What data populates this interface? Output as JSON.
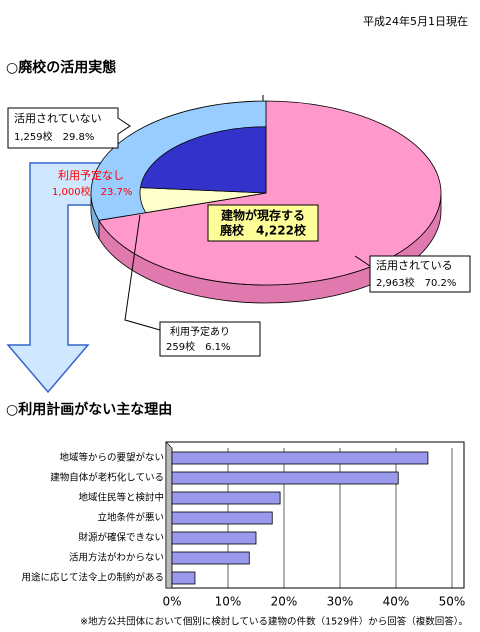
{
  "header": {
    "date": "平成24年5月1日現在"
  },
  "chart_data": [
    {
      "type": "pie",
      "title": "○廃校の活用実態",
      "center_label": [
        "建物が現存する",
        "廃校　4,222校"
      ],
      "series": [
        {
          "name": "活用されている",
          "color": "#ff99cc",
          "values": [
            70.2
          ],
          "value_labels": [
            "2,963校　70.2%"
          ]
        },
        {
          "name": "利用予定あり",
          "color": "#ffffcc",
          "values": [
            6.1
          ],
          "value_labels": [
            "259校　6.1%"
          ]
        },
        {
          "name": "利用予定なし",
          "color": "#3333cc",
          "values": [
            23.7
          ],
          "value_labels": [
            "1,000校　23.7%"
          ]
        }
      ],
      "group": {
        "name": "活用されていない",
        "color": "#99ccff",
        "value": 29.8,
        "value_label": "1,259校　29.8%"
      }
    },
    {
      "type": "bar",
      "title": "○利用計画がない主な理由",
      "orientation": "horizontal",
      "color": "#9999ee",
      "categories": [
        "地域等からの要望がない",
        "建物自体が老朽化している",
        "地域住民等と検討中",
        "立地条件が悪い",
        "財源が確保できない",
        "活用方法がわからない",
        "用途に応じて法令上の制約がある"
      ],
      "values": [
        45.7,
        40.4,
        19.3,
        17.9,
        15.0,
        13.8,
        4.1
      ],
      "xlim": [
        0,
        50
      ],
      "xticks": [
        {
          "value": 0,
          "label": "0%"
        },
        {
          "value": 10,
          "label": "10%"
        },
        {
          "value": 20,
          "label": "20%"
        },
        {
          "value": 30,
          "label": "30%"
        },
        {
          "value": 40,
          "label": "40%"
        },
        {
          "value": 50,
          "label": "50%"
        }
      ],
      "grid": true
    }
  ],
  "footnote": "※地方公共団体において個別に検討している建物の件数（1529件）から回答（複数回答）。"
}
